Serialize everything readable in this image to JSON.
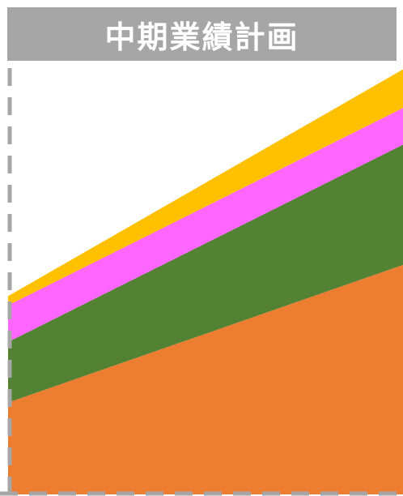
{
  "chart_data": {
    "type": "area",
    "title": "中期業績計画",
    "stacked": true,
    "x": [
      0,
      1
    ],
    "series": [
      {
        "values": [
          100,
          250
        ],
        "color": "#ed7d31"
      },
      {
        "values": [
          66,
          131
        ],
        "color": "#548235"
      },
      {
        "values": [
          40,
          40
        ],
        "color": "#ff66ff"
      },
      {
        "values": [
          10,
          42
        ],
        "color": "#ffc000"
      }
    ],
    "ylim": [
      0,
      468
    ],
    "xlabel": "",
    "ylabel": "",
    "grid": false,
    "frame": {
      "color": "#a6a6a6",
      "style": "dashed"
    }
  }
}
